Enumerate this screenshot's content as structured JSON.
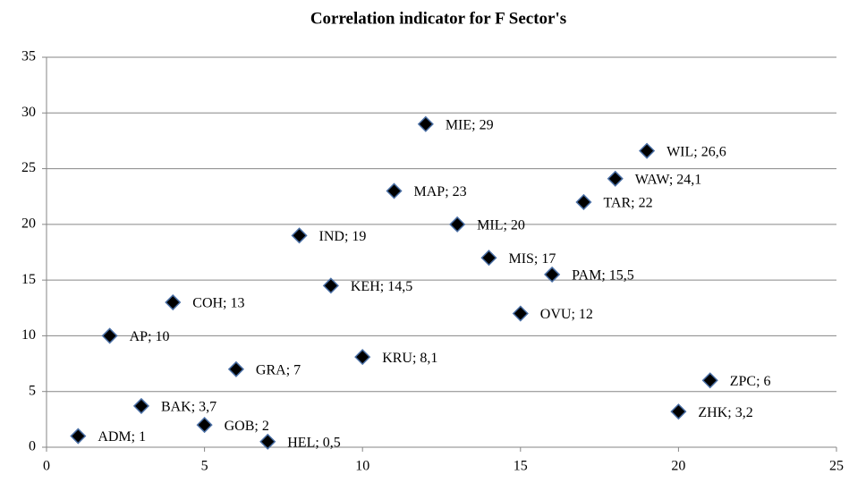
{
  "chart_data": {
    "type": "scatter",
    "title": "Correlation indicator for F Sector's",
    "x": [
      1,
      2,
      3,
      4,
      5,
      6,
      7,
      8,
      9,
      10,
      11,
      12,
      13,
      14,
      15,
      16,
      17,
      18,
      19,
      20,
      21
    ],
    "values": [
      1,
      10,
      3.7,
      13,
      2,
      7,
      0.5,
      19,
      14.5,
      8.1,
      23,
      29,
      20,
      17,
      12,
      15.5,
      22,
      24.1,
      26.6,
      3.2,
      6
    ],
    "value_labels": [
      "ADM; 1",
      "AP; 10",
      "BAK; 3,7",
      "COH; 13",
      "GOB; 2",
      "GRA; 7",
      "HEL; 0,5",
      "IND; 19",
      "KEH; 14,5",
      "KRU; 8,1",
      "MAP; 23",
      "MIE; 29",
      "MIL; 20",
      "MIS; 17",
      "OVU; 12",
      "PAM; 15,5",
      "TAR; 22",
      "WAW; 24,1",
      "WIL; 26,6",
      "ZHK; 3,2",
      "ZPC; 6"
    ],
    "color": "#000000",
    "edge_color": "#4a6fa5",
    "xlim": [
      0,
      25
    ],
    "ylim": [
      0,
      35
    ],
    "xticks": [
      0,
      5,
      10,
      15,
      20,
      25
    ],
    "yticks": [
      0,
      5,
      10,
      15,
      20,
      25,
      30,
      35
    ],
    "grid": true
  }
}
